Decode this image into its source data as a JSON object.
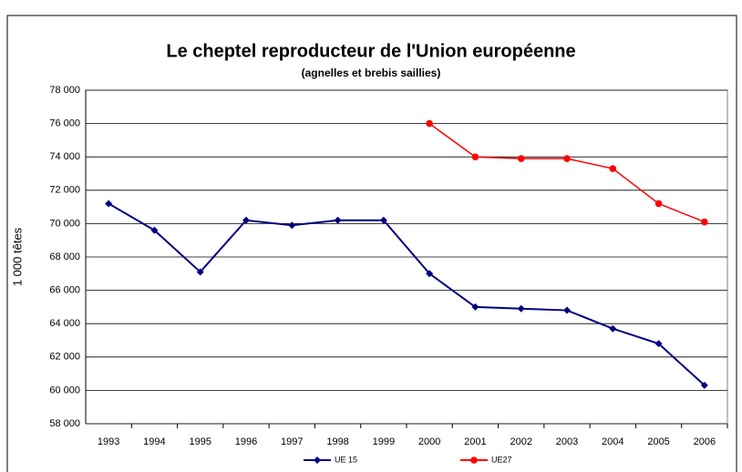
{
  "chart_data": {
    "type": "line",
    "title": "Le cheptel reproducteur de l'Union européenne",
    "subtitle": "(agnelles et brebis saillies)",
    "y_label": "1 000 têtes",
    "categories": [
      "1993",
      "1994",
      "1995",
      "1996",
      "1997",
      "1998",
      "1999",
      "2000",
      "2001",
      "2002",
      "2003",
      "2004",
      "2005",
      "2006"
    ],
    "series": [
      {
        "name": "UE 15",
        "color": "#000080",
        "marker": "diamond",
        "values": [
          71200,
          69600,
          67100,
          70200,
          69900,
          70200,
          70200,
          67000,
          65000,
          64900,
          64800,
          63700,
          62800,
          60300
        ]
      },
      {
        "name": "UE27",
        "color": "#ff0000",
        "marker": "circle",
        "values": [
          null,
          null,
          null,
          null,
          null,
          null,
          null,
          76000,
          74000,
          73900,
          73900,
          73300,
          71200,
          70100
        ]
      }
    ],
    "ylim": [
      58000,
      78000
    ],
    "yticks": [
      {
        "value": 58000,
        "label": "58 000"
      },
      {
        "value": 60000,
        "label": "60 000"
      },
      {
        "value": 62000,
        "label": "62 000"
      },
      {
        "value": 64000,
        "label": "64 000"
      },
      {
        "value": 66000,
        "label": "66 000"
      },
      {
        "value": 68000,
        "label": "68 000"
      },
      {
        "value": 70000,
        "label": "70 000"
      },
      {
        "value": 72000,
        "label": "72 000"
      },
      {
        "value": 74000,
        "label": "74 000"
      },
      {
        "value": 76000,
        "label": "76 000"
      },
      {
        "value": 78000,
        "label": "78 000"
      }
    ],
    "grid": true,
    "legend": "bottom"
  }
}
